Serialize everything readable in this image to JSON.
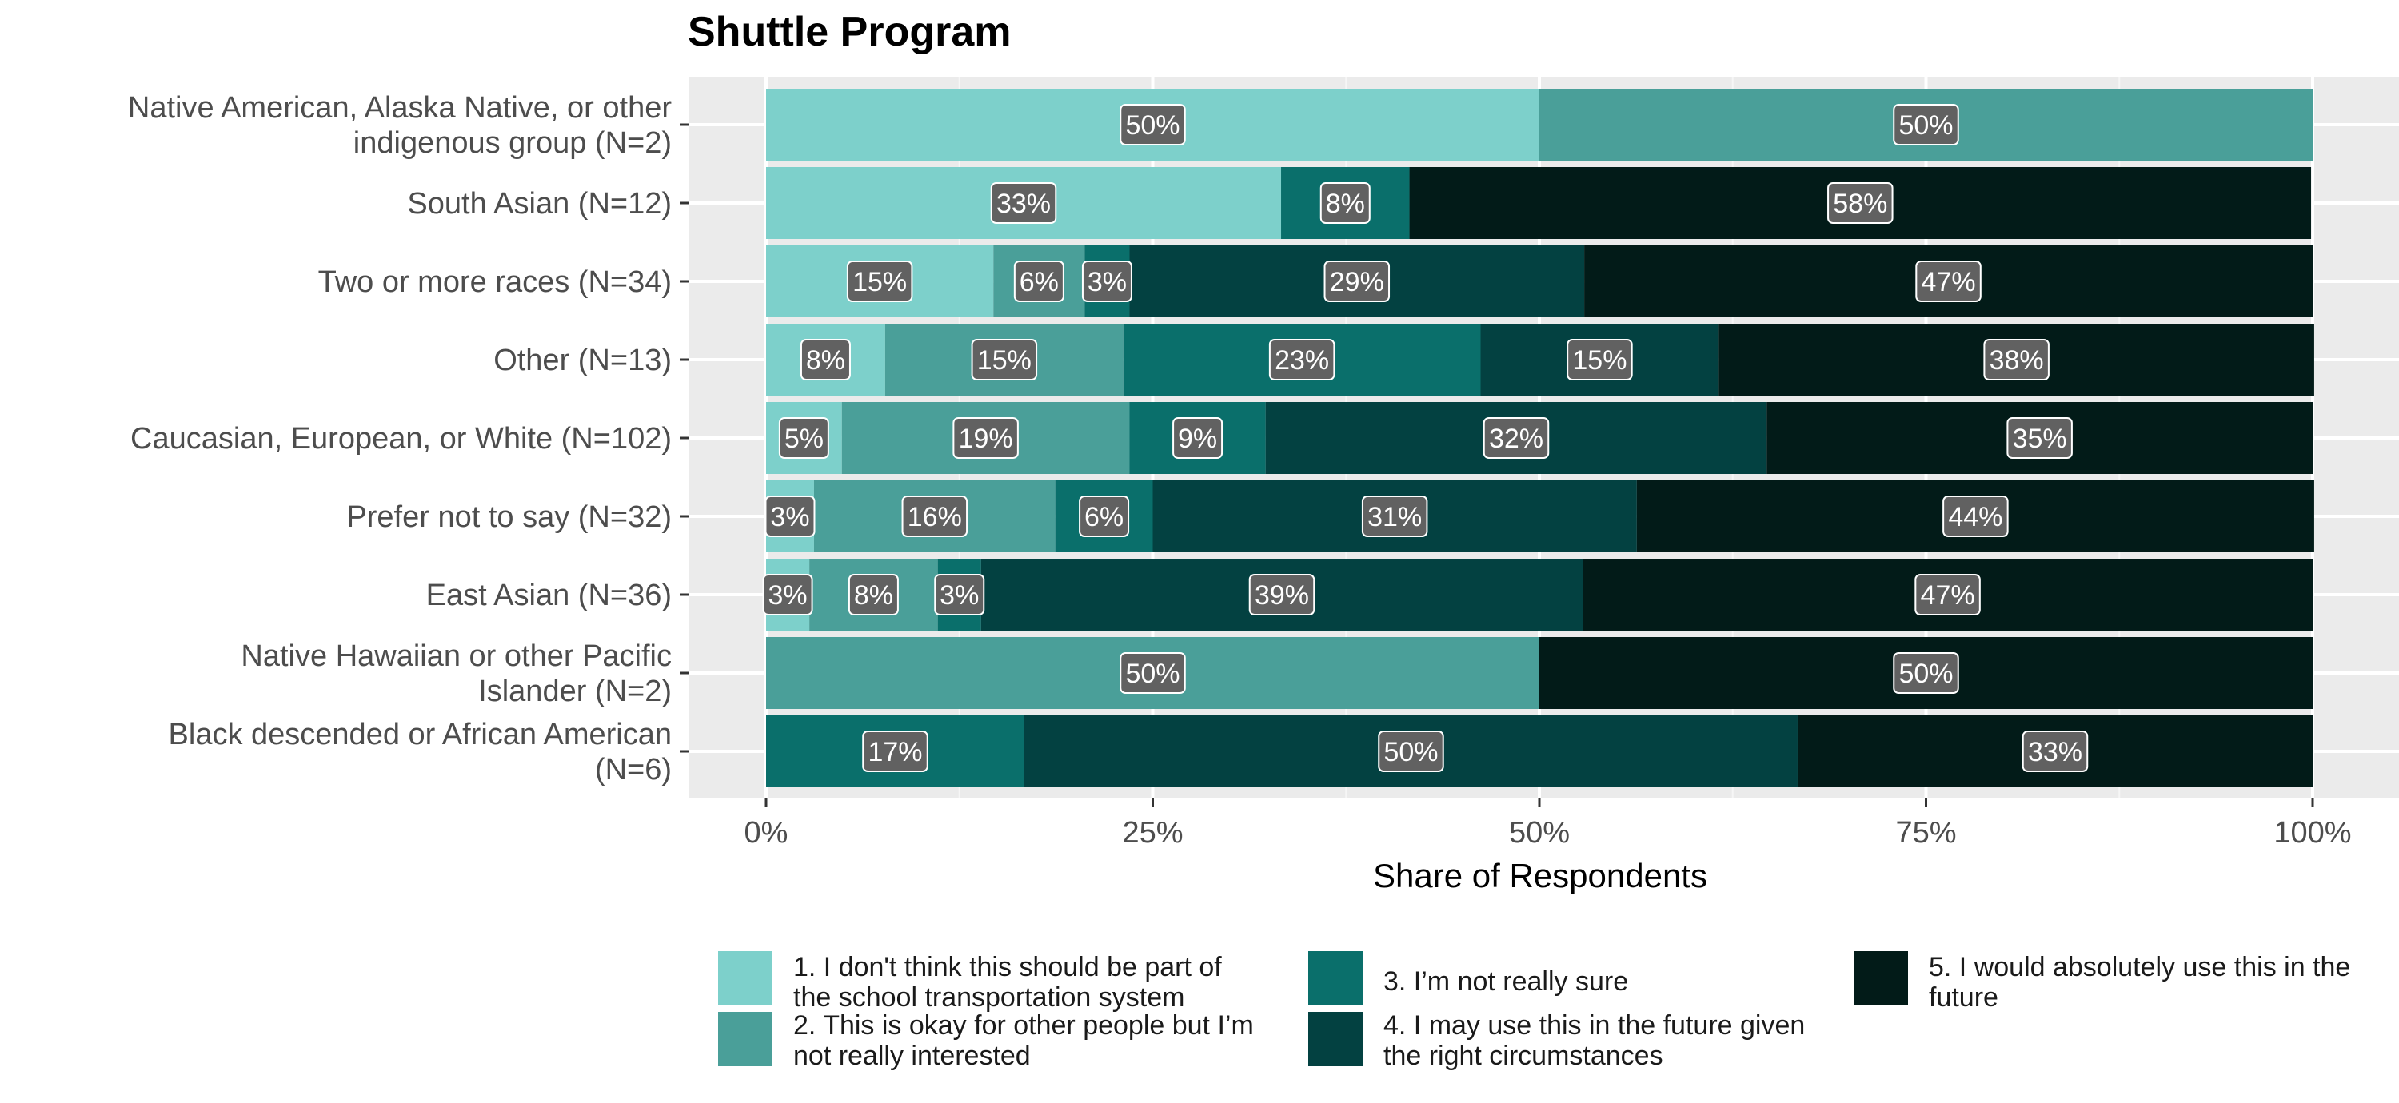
{
  "chart_data": {
    "type": "bar",
    "orientation": "horizontal",
    "stacked": true,
    "title": "Shuttle Program",
    "xlabel": "Share of Respondents",
    "ylabel": "",
    "xlim": [
      0,
      1
    ],
    "x_ticks": [
      "0%",
      "25%",
      "50%",
      "75%",
      "100%"
    ],
    "grid": true,
    "legend_position": "bottom",
    "categories": [
      "Native American, Alaska Native, or other indigenous group (N=2)",
      "South Asian (N=12)",
      "Two or more races (N=34)",
      "Other (N=13)",
      "Caucasian, European, or White (N=102)",
      "Prefer not to say (N=32)",
      "East Asian (N=36)",
      "Native Hawaiian or other Pacific Islander (N=2)",
      "Black descended or African American (N=6)"
    ],
    "category_lines": [
      [
        "Native American, Alaska Native, or other",
        "indigenous group (N=2)"
      ],
      [
        "South Asian (N=12)"
      ],
      [
        "Two or more races (N=34)"
      ],
      [
        "Other (N=13)"
      ],
      [
        "Caucasian, European, or White (N=102)"
      ],
      [
        "Prefer not to say (N=32)"
      ],
      [
        "East Asian (N=36)"
      ],
      [
        "Native Hawaiian or other Pacific",
        "Islander (N=2)"
      ],
      [
        "Black descended or African American",
        "(N=6)"
      ]
    ],
    "series": [
      {
        "name": "1. I don't think this should be part of the school transportation system",
        "label_lines": [
          "1. I don't think this should be part of",
          "the school transportation system"
        ],
        "color": "#7dd0cb",
        "values": [
          0.5,
          0.333,
          0.147,
          0.077,
          0.049,
          0.031,
          0.028,
          0,
          0
        ],
        "labels": [
          "50%",
          "33%",
          "15%",
          "8%",
          "5%",
          "3%",
          "3%",
          "",
          ""
        ]
      },
      {
        "name": "2. This is okay for other people but I’m not really interested",
        "label_lines": [
          "2. This is okay for other people but I’m",
          "not really interested"
        ],
        "color": "#4a9f99",
        "values": [
          0.5,
          0,
          0.059,
          0.154,
          0.186,
          0.156,
          0.083,
          0.5,
          0
        ],
        "labels": [
          "50%",
          "",
          "6%",
          "15%",
          "19%",
          "16%",
          "8%",
          "50%",
          ""
        ]
      },
      {
        "name": "3. I’m not really sure",
        "label_lines": [
          "3. I’m not really sure"
        ],
        "color": "#0a6f6b",
        "values": [
          0,
          0.083,
          0.029,
          0.231,
          0.088,
          0.063,
          0.028,
          0,
          0.167
        ],
        "labels": [
          "",
          "8%",
          "3%",
          "23%",
          "9%",
          "6%",
          "3%",
          "",
          "17%"
        ]
      },
      {
        "name": "4. I may use this in the future given the right circumstances",
        "label_lines": [
          "4. I may use this in the future given",
          "the right circumstances"
        ],
        "color": "#034141",
        "values": [
          0,
          0,
          0.294,
          0.154,
          0.324,
          0.313,
          0.389,
          0,
          0.5
        ],
        "labels": [
          "",
          "",
          "29%",
          "15%",
          "32%",
          "31%",
          "39%",
          "",
          "50%"
        ]
      },
      {
        "name": "5. I would absolutely use this in the future",
        "label_lines": [
          "5. I would absolutely use this in the",
          "future"
        ],
        "color": "#021b18",
        "values": [
          0,
          0.583,
          0.471,
          0.385,
          0.353,
          0.438,
          0.472,
          0.5,
          0.333
        ],
        "labels": [
          "",
          "58%",
          "47%",
          "38%",
          "35%",
          "44%",
          "47%",
          "50%",
          "33%"
        ]
      }
    ]
  }
}
